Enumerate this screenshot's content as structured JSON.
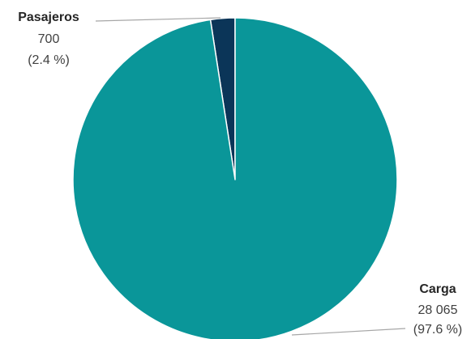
{
  "chart_data": {
    "type": "pie",
    "title": "",
    "slices": [
      {
        "name": "Pasajeros",
        "value": 700,
        "value_label": "700",
        "percent_label": "(2.4 %)",
        "color": "#0b3558"
      },
      {
        "name": "Carga",
        "value": 28065,
        "value_label": "28 065",
        "percent_label": "(97.6 %)",
        "color": "#0a9699"
      }
    ],
    "legend": "none",
    "label_placement": "outside-with-leader-lines",
    "start_angle": "12 o'clock",
    "direction": "counter-clockwise"
  }
}
